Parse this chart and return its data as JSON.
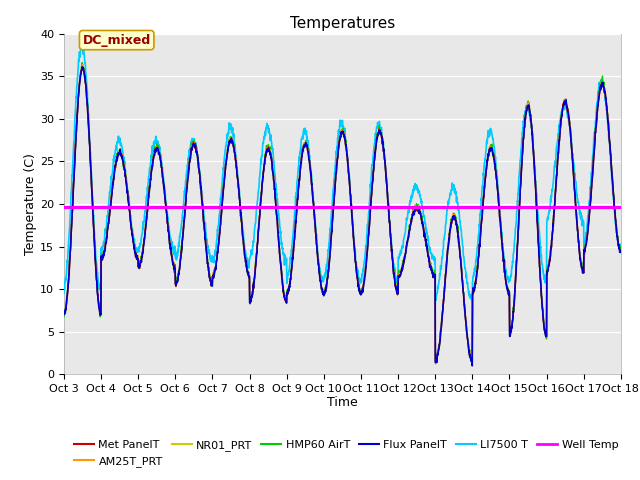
{
  "title": "Temperatures",
  "xlabel": "Time",
  "ylabel": "Temperature (C)",
  "ylim": [
    0,
    40
  ],
  "yticks": [
    0,
    5,
    10,
    15,
    20,
    25,
    30,
    35,
    40
  ],
  "xtick_labels": [
    "Oct 3",
    "Oct 4",
    "Oct 5",
    "Oct 6",
    "Oct 7",
    "Oct 8",
    "Oct 9",
    "Oct 10",
    "Oct 11",
    "Oct 12",
    "Oct 13",
    "Oct 14",
    "Oct 15",
    "Oct 16",
    "Oct 17",
    "Oct 18"
  ],
  "series_colors": {
    "Met PanelT": "#cc0000",
    "AM25T_PRT": "#ff9900",
    "NR01_PRT": "#cccc00",
    "HMP60 AirT": "#00cc00",
    "Flux PanelT": "#0000cc",
    "LI7500 T": "#00ccff",
    "Well Temp": "#ff00ff"
  },
  "well_temp_value": 19.7,
  "annotation_text": "DC_mixed",
  "annotation_color": "#990000",
  "annotation_bg": "#ffffcc",
  "annotation_border": "#cc9900",
  "plot_bg": "#e8e8e8",
  "title_fontsize": 11,
  "axis_label_fontsize": 9,
  "tick_fontsize": 8,
  "legend_fontsize": 8
}
